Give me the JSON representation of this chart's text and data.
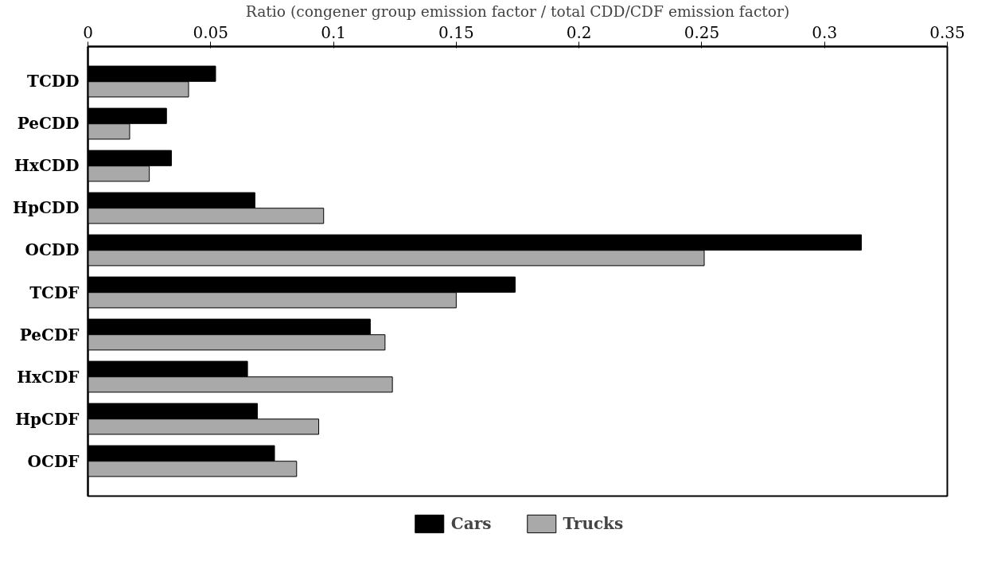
{
  "chart_data": {
    "type": "bar",
    "orientation": "horizontal",
    "xlabel": "Ratio (congener group emission factor / total CDD/CDF emission factor)",
    "categories": [
      "TCDD",
      "PeCDD",
      "HxCDD",
      "HpCDD",
      "OCDD",
      "TCDF",
      "PeCDF",
      "HxCDF",
      "HpCDF",
      "OCDF"
    ],
    "series": [
      {
        "name": "Cars",
        "color": "#000000",
        "values": [
          0.052,
          0.032,
          0.034,
          0.068,
          0.315,
          0.174,
          0.115,
          0.065,
          0.069,
          0.076
        ]
      },
      {
        "name": "Trucks",
        "color": "#a9a9a9",
        "values": [
          0.041,
          0.017,
          0.025,
          0.096,
          0.251,
          0.15,
          0.121,
          0.124,
          0.094,
          0.085
        ]
      }
    ],
    "xlim": [
      0,
      0.35
    ],
    "xticks": [
      0,
      0.05,
      0.1,
      0.15,
      0.2,
      0.25,
      0.3,
      0.35
    ],
    "grid": false,
    "legend": "bottom"
  }
}
